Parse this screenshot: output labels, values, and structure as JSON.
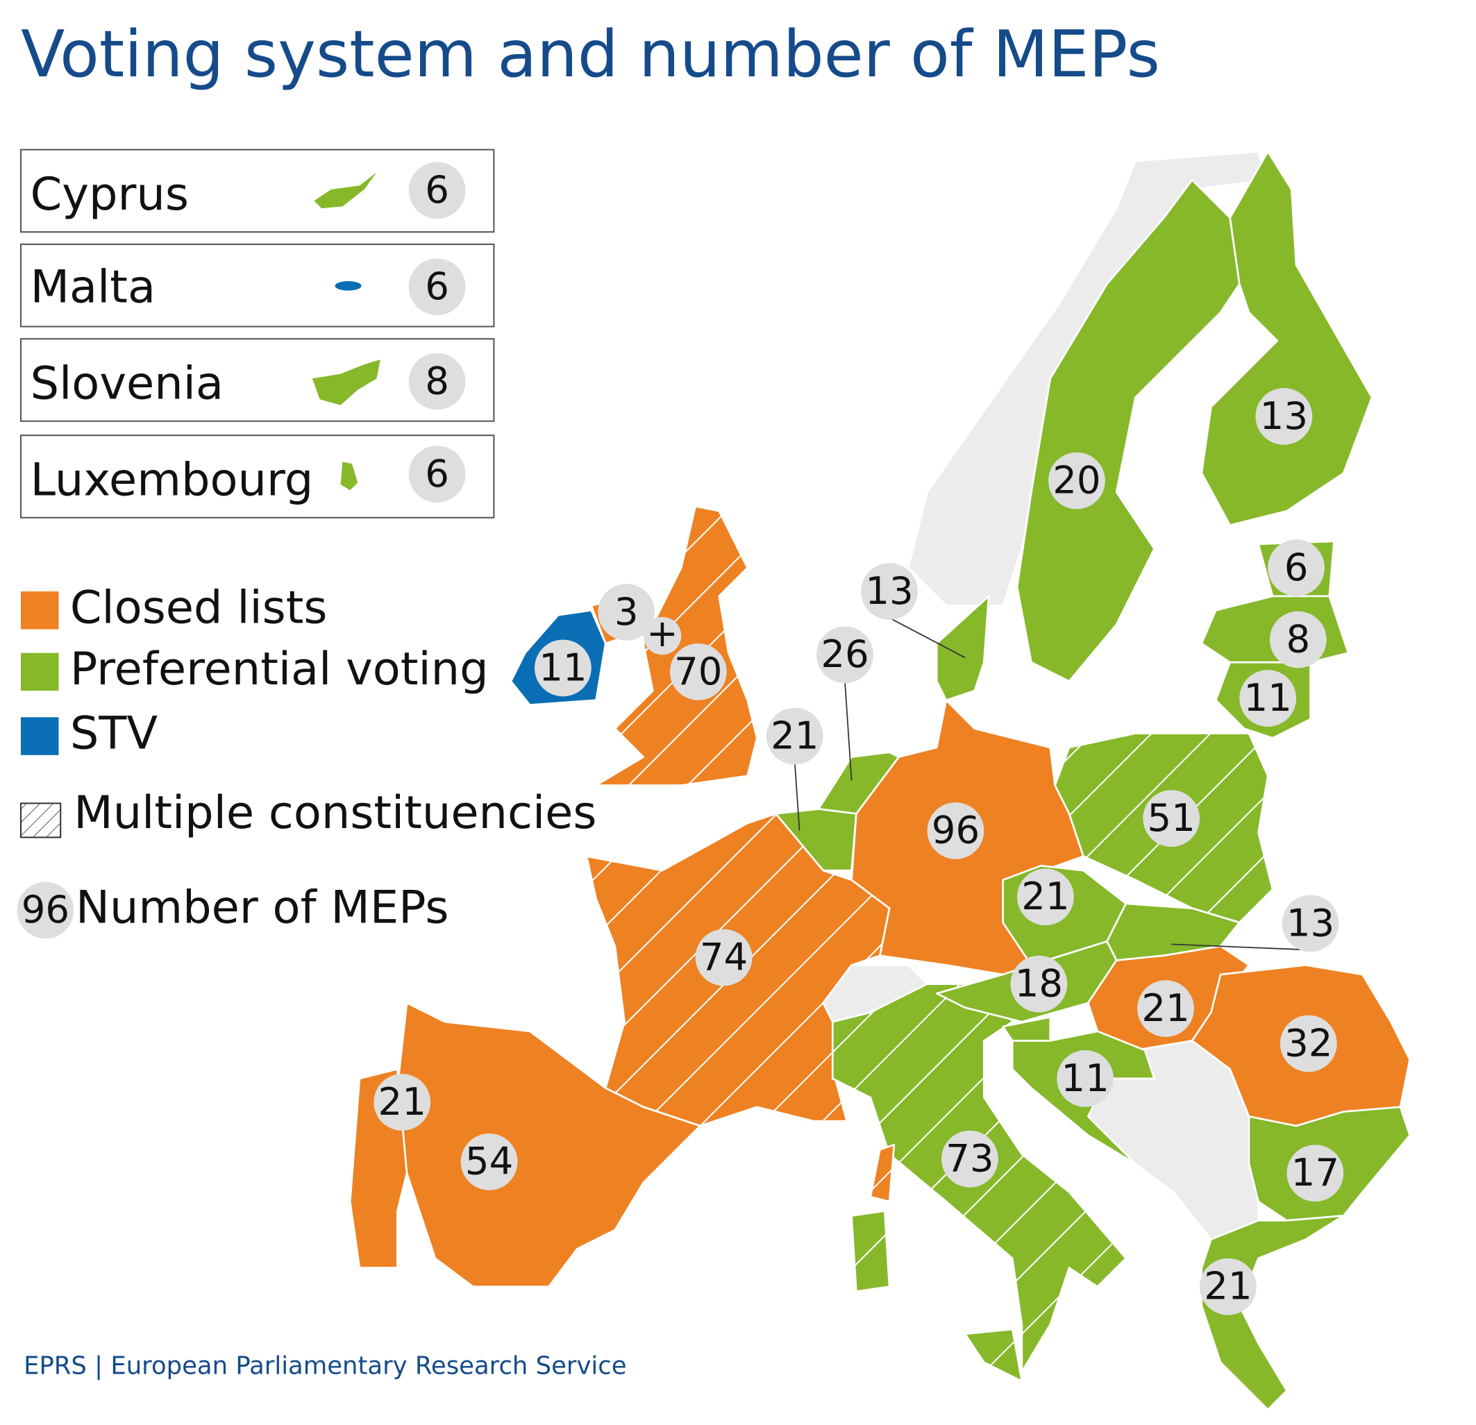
{
  "title": "Voting system and number of MEPs",
  "small_states": [
    {
      "name": "Cyprus",
      "meps": 6
    },
    {
      "name": "Malta",
      "meps": 6
    },
    {
      "name": "Slovenia",
      "meps": 8
    },
    {
      "name": "Luxembourg",
      "meps": 6
    }
  ],
  "legend": [
    {
      "label": "Closed lists",
      "color": "#ee8122"
    },
    {
      "label": "Preferential voting",
      "color": "#86b82a"
    },
    {
      "label": "STV",
      "color": "#0a6eb4"
    }
  ],
  "hatch_label": "Multiple constituencies",
  "number_example": 96,
  "number_label": "Number of MEPs",
  "map_labels": [
    13,
    20,
    13,
    6,
    8,
    11,
    11,
    3,
    70,
    26,
    21,
    96,
    51,
    21,
    13,
    18,
    21,
    32,
    11,
    74,
    73,
    54,
    21,
    17,
    21
  ],
  "uk_join": "+",
  "source": "EPRS | European Parliamentary Research Service"
}
